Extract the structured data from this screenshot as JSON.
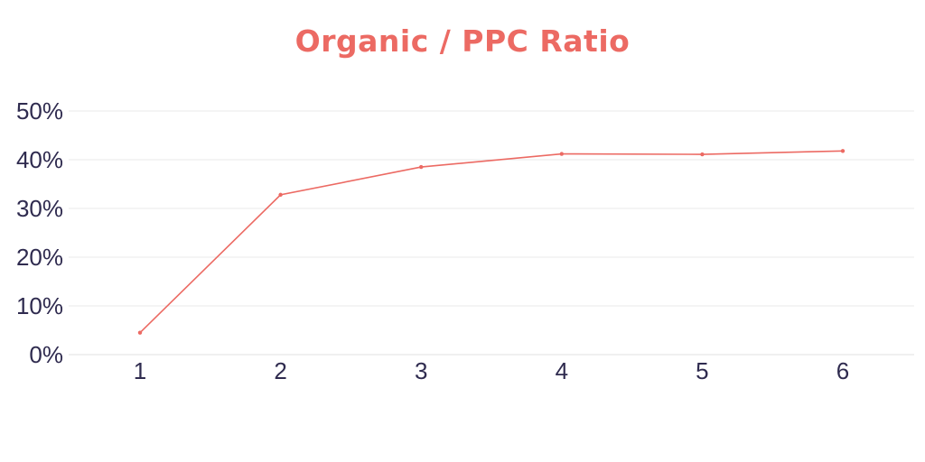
{
  "chart_data": {
    "type": "line",
    "title": "Organic / PPC Ratio",
    "xlabel": "",
    "ylabel": "",
    "categories": [
      "1",
      "2",
      "3",
      "4",
      "5",
      "6"
    ],
    "series": [
      {
        "values": [
          4.5,
          32.8,
          38.5,
          41.2,
          41.1,
          41.8
        ]
      }
    ],
    "ylim": [
      0,
      50
    ],
    "y_ticks": [
      "0%",
      "10%",
      "20%",
      "30%",
      "40%",
      "50%"
    ],
    "y_tick_values": [
      0,
      10,
      20,
      30,
      40,
      50
    ],
    "grid": true,
    "legend": "none"
  },
  "colors": {
    "title": "#ec6a63",
    "line": "#ec6a63",
    "tick_text": "#2f2b4f"
  }
}
